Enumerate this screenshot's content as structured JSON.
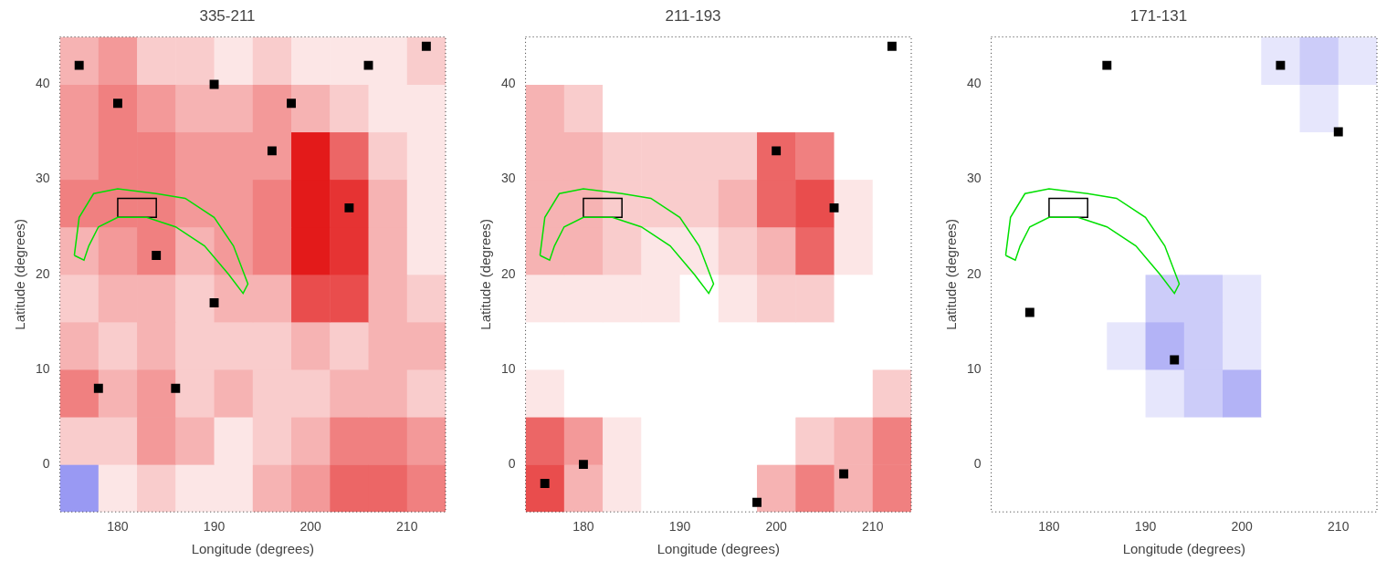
{
  "chart_data": [
    {
      "type": "heatmap",
      "title": "335-211",
      "x_label": "Longitude (degrees)",
      "y_label": "Latitude (degrees)",
      "xlim": [
        174,
        214
      ],
      "ylim": [
        -5,
        45
      ],
      "xticks": [
        180,
        190,
        200,
        210
      ],
      "yticks": [
        0,
        10,
        20,
        30,
        40
      ],
      "grid": false,
      "x_edges": [
        174,
        178,
        182,
        186,
        190,
        194,
        198,
        202,
        206,
        210,
        214
      ],
      "y_edges": [
        -5,
        0,
        5,
        10,
        15,
        20,
        25,
        30,
        35,
        40,
        45
      ],
      "cell_range": [
        -1,
        1
      ],
      "colors": [
        "#0000e0",
        "#ffffff",
        "#e00000"
      ],
      "cells": [
        [
          -0.4,
          0.1,
          0.2,
          0.1,
          0.1,
          0.3,
          0.4,
          0.6,
          0.6,
          0.5
        ],
        [
          0.2,
          0.2,
          0.4,
          0.3,
          0.1,
          0.2,
          0.3,
          0.5,
          0.5,
          0.4
        ],
        [
          0.5,
          0.3,
          0.4,
          0.2,
          0.3,
          0.2,
          0.2,
          0.3,
          0.3,
          0.2
        ],
        [
          0.3,
          0.2,
          0.3,
          0.2,
          0.2,
          0.2,
          0.3,
          0.2,
          0.3,
          0.3
        ],
        [
          0.2,
          0.3,
          0.3,
          0.2,
          0.3,
          0.3,
          0.7,
          0.7,
          0.3,
          0.2
        ],
        [
          0.3,
          0.4,
          0.5,
          0.3,
          0.4,
          0.5,
          0.9,
          0.8,
          0.3,
          0.1
        ],
        [
          0.5,
          0.5,
          0.5,
          0.4,
          0.4,
          0.5,
          0.9,
          0.8,
          0.3,
          0.1
        ],
        [
          0.4,
          0.5,
          0.5,
          0.4,
          0.4,
          0.4,
          0.9,
          0.6,
          0.2,
          0.1
        ],
        [
          0.4,
          0.5,
          0.4,
          0.3,
          0.3,
          0.4,
          0.3,
          0.2,
          0.1,
          0.1
        ],
        [
          0.3,
          0.4,
          0.2,
          0.2,
          0.1,
          0.2,
          0.1,
          0.1,
          0.1,
          0.2
        ]
      ],
      "masked": {
        "color": "#000000",
        "x": [
          176,
          180,
          190,
          198,
          206,
          196,
          204,
          184,
          178,
          186,
          190,
          212
        ],
        "y": [
          42,
          38,
          40,
          38,
          42,
          33,
          27,
          22,
          8,
          8,
          17,
          44
        ]
      },
      "series": [
        {
          "type": "line",
          "color": "#00e000",
          "x": [
            175.5,
            176,
            177.5,
            180,
            184,
            187,
            190,
            192,
            193.5,
            193,
            191.5,
            189,
            186,
            183,
            180,
            178,
            177,
            176.5,
            175.5
          ],
          "y": [
            22,
            26,
            28.5,
            29,
            28.5,
            28,
            26,
            23,
            19,
            18,
            20,
            23,
            25,
            26,
            26,
            25,
            23,
            21.5,
            22
          ]
        },
        {
          "type": "line",
          "color": "#000000",
          "x": [
            180,
            184,
            184,
            180,
            180
          ],
          "y": [
            26,
            26,
            28,
            28,
            26
          ]
        }
      ]
    },
    {
      "type": "heatmap",
      "title": "211-193",
      "x_label": "Longitude (degrees)",
      "y_label": "Latitude (degrees)",
      "xlim": [
        174,
        214
      ],
      "ylim": [
        -5,
        45
      ],
      "xticks": [
        180,
        190,
        200,
        210
      ],
      "yticks": [
        0,
        10,
        20,
        30,
        40
      ],
      "grid": false,
      "x_edges": [
        174,
        178,
        182,
        186,
        190,
        194,
        198,
        202,
        206,
        210,
        214
      ],
      "y_edges": [
        -5,
        0,
        5,
        10,
        15,
        20,
        25,
        30,
        35,
        40,
        45
      ],
      "cell_range": [
        -1,
        1
      ],
      "colors": [
        "#0000e0",
        "#ffffff",
        "#e00000"
      ],
      "cells": [
        [
          0.7,
          0.3,
          0.1,
          0,
          0,
          0,
          0.3,
          0.5,
          0.3,
          0.5
        ],
        [
          0.6,
          0.4,
          0.1,
          0,
          0,
          0,
          0,
          0.2,
          0.3,
          0.5
        ],
        [
          0.1,
          0,
          0,
          0,
          0,
          0,
          0,
          0,
          0,
          0.2
        ],
        [
          0,
          0,
          0,
          0,
          0,
          0,
          0,
          0,
          0,
          0
        ],
        [
          0.1,
          0.1,
          0.1,
          0.1,
          0,
          0.1,
          0.2,
          0.2,
          0,
          0
        ],
        [
          0.3,
          0.3,
          0.2,
          0.1,
          0.1,
          0.2,
          0.3,
          0.6,
          0.1,
          0
        ],
        [
          0.3,
          0.3,
          0.2,
          0.2,
          0.2,
          0.3,
          0.6,
          0.7,
          0.1,
          0
        ],
        [
          0.3,
          0.3,
          0.2,
          0.2,
          0.2,
          0.2,
          0.6,
          0.5,
          0,
          0
        ],
        [
          0.3,
          0.2,
          0,
          0,
          0,
          0,
          0,
          0,
          0,
          0
        ],
        [
          0,
          0,
          0,
          0,
          0,
          0,
          0,
          0,
          0,
          0
        ]
      ],
      "masked": {
        "color": "#000000",
        "x": [
          176,
          180,
          200,
          206,
          198,
          207,
          212
        ],
        "y": [
          -2,
          0,
          33,
          27,
          -4,
          -1,
          44
        ]
      },
      "series": [
        {
          "type": "line",
          "color": "#00e000",
          "x": [
            175.5,
            176,
            177.5,
            180,
            184,
            187,
            190,
            192,
            193.5,
            193,
            191.5,
            189,
            186,
            183,
            180,
            178,
            177,
            176.5,
            175.5
          ],
          "y": [
            22,
            26,
            28.5,
            29,
            28.5,
            28,
            26,
            23,
            19,
            18,
            20,
            23,
            25,
            26,
            26,
            25,
            23,
            21.5,
            22
          ]
        },
        {
          "type": "line",
          "color": "#000000",
          "x": [
            180,
            184,
            184,
            180,
            180
          ],
          "y": [
            26,
            26,
            28,
            28,
            26
          ]
        }
      ]
    },
    {
      "type": "heatmap",
      "title": "171-131",
      "x_label": "Longitude (degrees)",
      "y_label": "Latitude (degrees)",
      "xlim": [
        174,
        214
      ],
      "ylim": [
        -5,
        45
      ],
      "xticks": [
        180,
        190,
        200,
        210
      ],
      "yticks": [
        0,
        10,
        20,
        30,
        40
      ],
      "grid": false,
      "x_edges": [
        174,
        178,
        182,
        186,
        190,
        194,
        198,
        202,
        206,
        210,
        214
      ],
      "y_edges": [
        -5,
        0,
        5,
        10,
        15,
        20,
        25,
        30,
        35,
        40,
        45
      ],
      "cell_range": [
        -1,
        1
      ],
      "colors": [
        "#0000e0",
        "#ffffff",
        "#e00000"
      ],
      "cells": [
        [
          0,
          0,
          0,
          0,
          0,
          0,
          0,
          0,
          0,
          0
        ],
        [
          0,
          0,
          0,
          0,
          0,
          0,
          0,
          0,
          0,
          0
        ],
        [
          0,
          0,
          0,
          0,
          -0.1,
          -0.2,
          -0.3,
          0,
          0,
          0
        ],
        [
          0,
          0,
          0,
          -0.1,
          -0.3,
          -0.2,
          -0.1,
          0,
          0,
          0
        ],
        [
          0,
          0,
          0,
          0,
          -0.2,
          -0.2,
          -0.1,
          0,
          0,
          0
        ],
        [
          0,
          0,
          0,
          0,
          0,
          0,
          0,
          0,
          0,
          0
        ],
        [
          0,
          0,
          0,
          0,
          0,
          0,
          0,
          0,
          0,
          0
        ],
        [
          0,
          0,
          0,
          0,
          0,
          0,
          0,
          0,
          0,
          0
        ],
        [
          0,
          0,
          0,
          0,
          0,
          0,
          0,
          0,
          -0.1,
          0
        ],
        [
          0,
          0,
          0,
          0,
          0,
          0,
          0,
          -0.1,
          -0.2,
          -0.1
        ]
      ],
      "masked": {
        "color": "#000000",
        "x": [
          204,
          186,
          193,
          178,
          210
        ],
        "y": [
          42,
          42,
          11,
          16,
          35
        ]
      },
      "series": [
        {
          "type": "line",
          "color": "#00e000",
          "x": [
            175.5,
            176,
            177.5,
            180,
            184,
            187,
            190,
            192,
            193.5,
            193,
            191.5,
            189,
            186,
            183,
            180,
            178,
            177,
            176.5,
            175.5
          ],
          "y": [
            22,
            26,
            28.5,
            29,
            28.5,
            28,
            26,
            23,
            19,
            18,
            20,
            23,
            25,
            26,
            26,
            25,
            23,
            21.5,
            22
          ]
        },
        {
          "type": "line",
          "color": "#000000",
          "x": [
            180,
            184,
            184,
            180,
            180
          ],
          "y": [
            26,
            26,
            28,
            28,
            26
          ]
        }
      ]
    }
  ]
}
